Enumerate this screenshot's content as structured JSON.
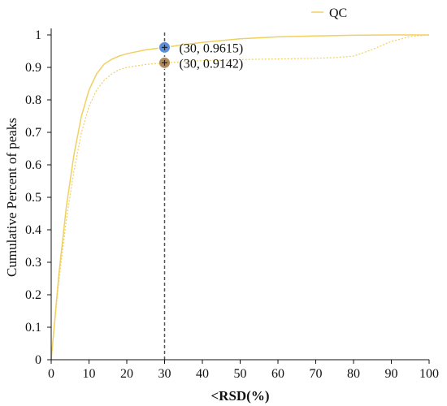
{
  "chart_data": {
    "type": "line",
    "xlabel": "<RSD(%)",
    "ylabel": "Cumulative Percent of peaks",
    "xlim": [
      0,
      100
    ],
    "ylim": [
      0,
      1
    ],
    "x_ticks": [
      "0",
      "10",
      "20",
      "30",
      "40",
      "50",
      "60",
      "70",
      "80",
      "90",
      "100"
    ],
    "y_ticks": [
      "0",
      "0.1",
      "0.2",
      "0.3",
      "0.4",
      "0.5",
      "0.6",
      "0.7",
      "0.8",
      "0.9",
      "1"
    ],
    "grid": false,
    "legend": {
      "position": "top-right",
      "entries": [
        "QC"
      ]
    },
    "reference_line": {
      "x": 30,
      "style": "dashed"
    },
    "series": [
      {
        "name": "QC",
        "style": "solid",
        "color": "#f0d060",
        "x": [
          0,
          1,
          2,
          4,
          6,
          8,
          10,
          12,
          14,
          16,
          18,
          20,
          25,
          30,
          35,
          40,
          50,
          60,
          70,
          80,
          90,
          95,
          100
        ],
        "y": [
          0,
          0.13,
          0.26,
          0.47,
          0.63,
          0.75,
          0.83,
          0.88,
          0.91,
          0.925,
          0.935,
          0.942,
          0.954,
          0.9615,
          0.97,
          0.977,
          0.988,
          0.994,
          0.997,
          0.999,
          1.0,
          1.0,
          1.0
        ]
      },
      {
        "name": "",
        "style": "dotted",
        "color": "#f0d060",
        "x": [
          0,
          1,
          2,
          4,
          6,
          8,
          10,
          12,
          14,
          16,
          18,
          20,
          25,
          30,
          35,
          40,
          50,
          60,
          70,
          75,
          80,
          85,
          90,
          95,
          100
        ],
        "y": [
          0,
          0.12,
          0.24,
          0.43,
          0.58,
          0.7,
          0.78,
          0.83,
          0.86,
          0.88,
          0.893,
          0.9,
          0.909,
          0.9142,
          0.918,
          0.921,
          0.924,
          0.926,
          0.928,
          0.93,
          0.935,
          0.955,
          0.98,
          0.995,
          1.0
        ]
      }
    ],
    "annotations": [
      {
        "x": 30,
        "y": 0.9615,
        "label": "(30, 0.9615)",
        "marker_color": "#5b8fd9"
      },
      {
        "x": 30,
        "y": 0.9142,
        "label": "(30, 0.9142)",
        "marker_color": "#b08a5a"
      }
    ]
  }
}
